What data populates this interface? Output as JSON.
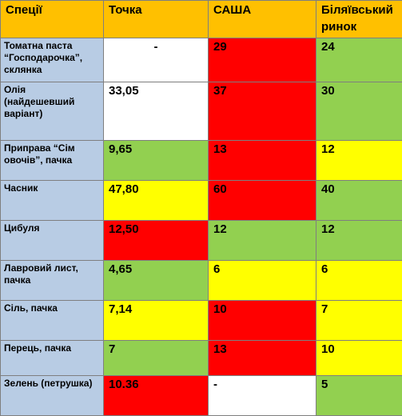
{
  "headers": [
    "Спеції",
    "Точка",
    "САША",
    "Біляївський ринок"
  ],
  "colors": {
    "header": "#ffc000",
    "label": "#b8cce4",
    "green": "#92d050",
    "yellow": "#ffff00",
    "red": "#ff0000",
    "white": "#ffffff"
  },
  "rows": [
    {
      "item": "Томатна паста “Господарочка”, склянка",
      "tochka": {
        "value": "-",
        "color": "white",
        "align": "center"
      },
      "sasha": {
        "value": "29",
        "color": "red"
      },
      "bilyaivskyi": {
        "value": "24",
        "color": "green"
      }
    },
    {
      "item": "Олія (найдешевший варіант)",
      "tochka": {
        "value": "33,05",
        "color": "white"
      },
      "sasha": {
        "value": "37",
        "color": "red"
      },
      "bilyaivskyi": {
        "value": "30",
        "color": "green"
      }
    },
    {
      "item": "Приправа “Сім овочів”, пачка",
      "tochka": {
        "value": "9,65",
        "color": "green"
      },
      "sasha": {
        "value": "13",
        "color": "red"
      },
      "bilyaivskyi": {
        "value": "12",
        "color": "yellow"
      }
    },
    {
      "item": "Часник",
      "tochka": {
        "value": "47,80",
        "color": "yellow"
      },
      "sasha": {
        "value": "60",
        "color": "red"
      },
      "bilyaivskyi": {
        "value": "40",
        "color": "green"
      }
    },
    {
      "item": "Цибуля",
      "tochka": {
        "value": "12,50",
        "color": "red"
      },
      "sasha": {
        "value": "12",
        "color": "green"
      },
      "bilyaivskyi": {
        "value": "12",
        "color": "green"
      }
    },
    {
      "item": "Лавровий лист, пачка",
      "tochka": {
        "value": "4,65",
        "color": "green"
      },
      "sasha": {
        "value": "6",
        "color": "yellow"
      },
      "bilyaivskyi": {
        "value": "6",
        "color": "yellow"
      }
    },
    {
      "item": "Сіль, пачка",
      "tochka": {
        "value": "7,14",
        "color": "yellow"
      },
      "sasha": {
        "value": "10",
        "color": "red"
      },
      "bilyaivskyi": {
        "value": "7",
        "color": "yellow"
      }
    },
    {
      "item": "Перець, пачка",
      "tochka": {
        "value": "7",
        "color": "green"
      },
      "sasha": {
        "value": "13",
        "color": "red"
      },
      "bilyaivskyi": {
        "value": "10",
        "color": "yellow"
      }
    },
    {
      "item": "Зелень (петрушка)",
      "tochka": {
        "value": "10.36",
        "color": "red"
      },
      "sasha": {
        "value": "-",
        "color": "white"
      },
      "bilyaivskyi": {
        "value": "5",
        "color": "green"
      }
    }
  ]
}
